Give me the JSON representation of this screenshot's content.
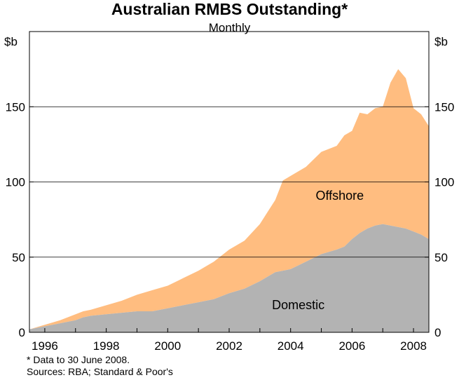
{
  "title": "Australian RMBS Outstanding*",
  "subtitle": "Monthly",
  "footnote": "*  Data to 30 June 2008.",
  "sources": "Sources: RBA; Standard & Poor's",
  "colors": {
    "domestic": "#b3b3b3",
    "offshore": "#ffbd80"
  },
  "chart_data": {
    "type": "area",
    "stacked": true,
    "x_unit": "year",
    "xlim": [
      1995.5,
      2008.5
    ],
    "ylim": [
      0,
      200
    ],
    "y_ticks": [
      0,
      50,
      100,
      150
    ],
    "x_ticks": [
      1996,
      1998,
      2000,
      2002,
      2004,
      2006,
      2008
    ],
    "x_tick_labels": [
      "1996",
      "1998",
      "2000",
      "2002",
      "2004",
      "2006",
      "2008"
    ],
    "ylabel_left": "$b",
    "ylabel_right": "$b",
    "grid": true,
    "annotations": [
      "Offshore",
      "Domestic"
    ],
    "x": [
      1995.5,
      1996.0,
      1996.5,
      1997.0,
      1997.25,
      1997.5,
      1998.0,
      1998.5,
      1999.0,
      1999.5,
      2000.0,
      2000.5,
      2001.0,
      2001.5,
      2002.0,
      2002.5,
      2003.0,
      2003.25,
      2003.5,
      2003.75,
      2004.0,
      2004.5,
      2005.0,
      2005.5,
      2005.75,
      2006.0,
      2006.25,
      2006.5,
      2006.75,
      2007.0,
      2007.25,
      2007.5,
      2007.75,
      2008.0,
      2008.25,
      2008.5
    ],
    "series": [
      {
        "name": "Domestic",
        "values": [
          2,
          4,
          6,
          8,
          10,
          11,
          12,
          13,
          14,
          14,
          16,
          18,
          20,
          22,
          26,
          29,
          34,
          37,
          40,
          41,
          42,
          47,
          52,
          55,
          57,
          62,
          66,
          69,
          71,
          72,
          71,
          70,
          69,
          67,
          65,
          62
        ]
      },
      {
        "name": "Offshore",
        "values": [
          0,
          1,
          2,
          4,
          4,
          4,
          6,
          8,
          11,
          14,
          15,
          18,
          21,
          25,
          29,
          32,
          38,
          43,
          48,
          60,
          62,
          63,
          68,
          69,
          74,
          72,
          80,
          76,
          78,
          78,
          95,
          105,
          100,
          82,
          80,
          75
        ]
      }
    ]
  }
}
